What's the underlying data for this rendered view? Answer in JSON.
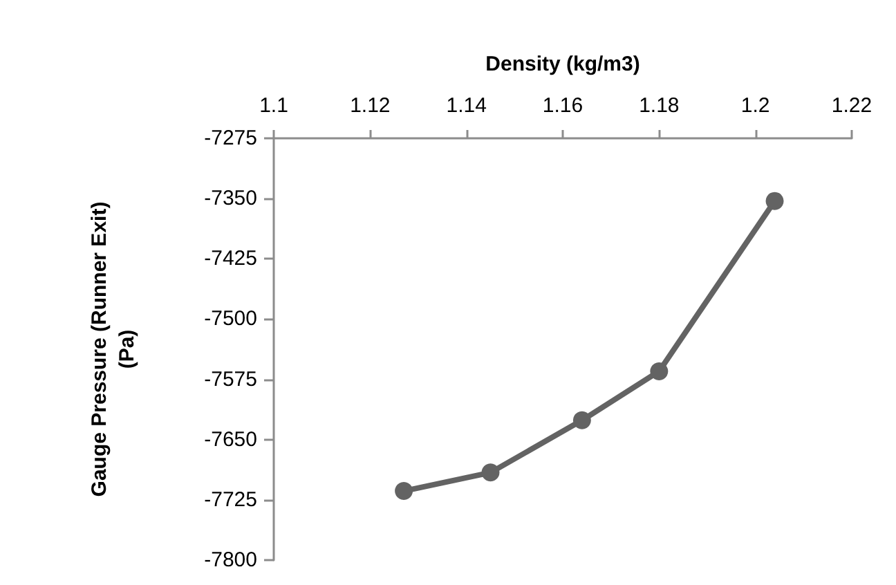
{
  "chart_data": {
    "type": "line",
    "xlabel": "Density (kg/m3)",
    "ylabel": "Gauge Pressure (Runner Exit)\n(Pa)",
    "x": [
      1.127,
      1.145,
      1.164,
      1.18,
      1.204
    ],
    "series": [
      {
        "color": "#636363",
        "values": [
          -7714,
          -7691,
          -7626,
          -7565,
          -7353
        ]
      }
    ],
    "xlim": [
      1.1,
      1.22
    ],
    "xticks": [
      1.1,
      1.12,
      1.14,
      1.16,
      1.18,
      1.2,
      1.22
    ],
    "ylim": [
      -7800,
      -7275
    ],
    "yticks": [
      -7800,
      -7725,
      -7650,
      -7575,
      -7500,
      -7425,
      -7350,
      -7275
    ],
    "grid": false,
    "marker": "circle",
    "line_style": "solid"
  }
}
